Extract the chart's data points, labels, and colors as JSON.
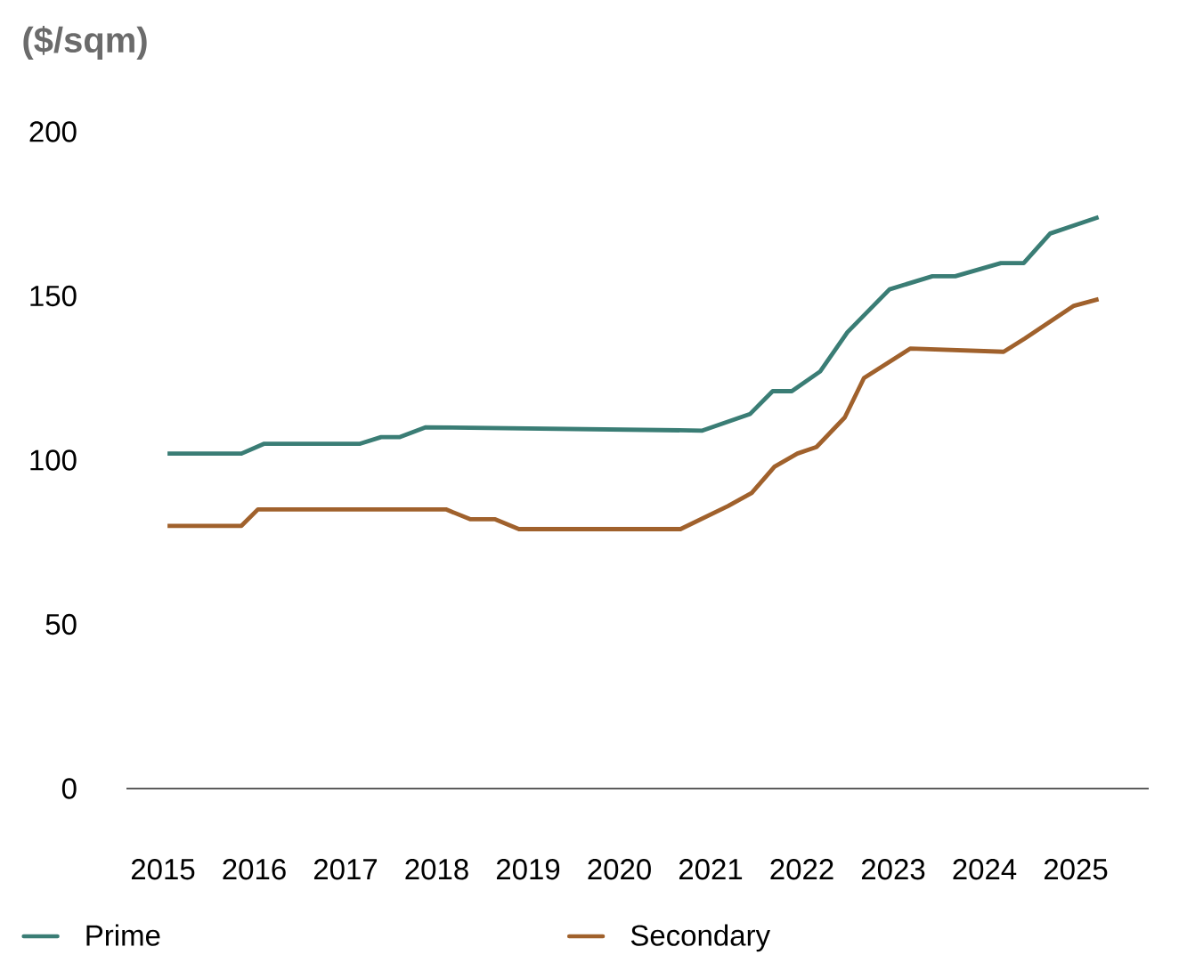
{
  "chart_data": {
    "type": "line",
    "ylabel": "($/sqm)",
    "series": [
      {
        "name": "Prime",
        "color": "#3a7d75",
        "x": [
          2015.05,
          2015.86,
          2016.11,
          2017.16,
          2017.39,
          2017.59,
          2017.88,
          2020.91,
          2021.43,
          2021.68,
          2021.89,
          2022.2,
          2022.5,
          2022.96,
          2023.43,
          2023.68,
          2024.18,
          2024.43,
          2024.72,
          2025.25
        ],
        "values": [
          102,
          102,
          105,
          105,
          107,
          107,
          110,
          109,
          114,
          121,
          121,
          127,
          139,
          152,
          156,
          156,
          160,
          160,
          169,
          174
        ]
      },
      {
        "name": "Secondary",
        "color": "#a0612c",
        "x": [
          2015.05,
          2015.86,
          2016.04,
          2018.1,
          2018.37,
          2018.64,
          2018.9,
          2020.67,
          2021.19,
          2021.45,
          2021.7,
          2021.95,
          2022.16,
          2022.47,
          2022.68,
          2023.19,
          2024.21,
          2024.44,
          2024.98,
          2025.25
        ],
        "values": [
          80,
          80,
          85,
          85,
          82,
          82,
          79,
          79,
          86,
          90,
          98,
          102,
          104,
          113,
          125,
          134,
          133,
          137,
          147,
          149
        ]
      }
    ],
    "xlim": [
      2014.6,
      2025.8
    ],
    "ylim": [
      0,
      200
    ],
    "xticks": [
      2015,
      2016,
      2017,
      2018,
      2019,
      2020,
      2021,
      2022,
      2023,
      2024,
      2025
    ],
    "yticks": [
      0,
      50,
      100,
      150,
      200
    ],
    "legend": "bottom"
  }
}
